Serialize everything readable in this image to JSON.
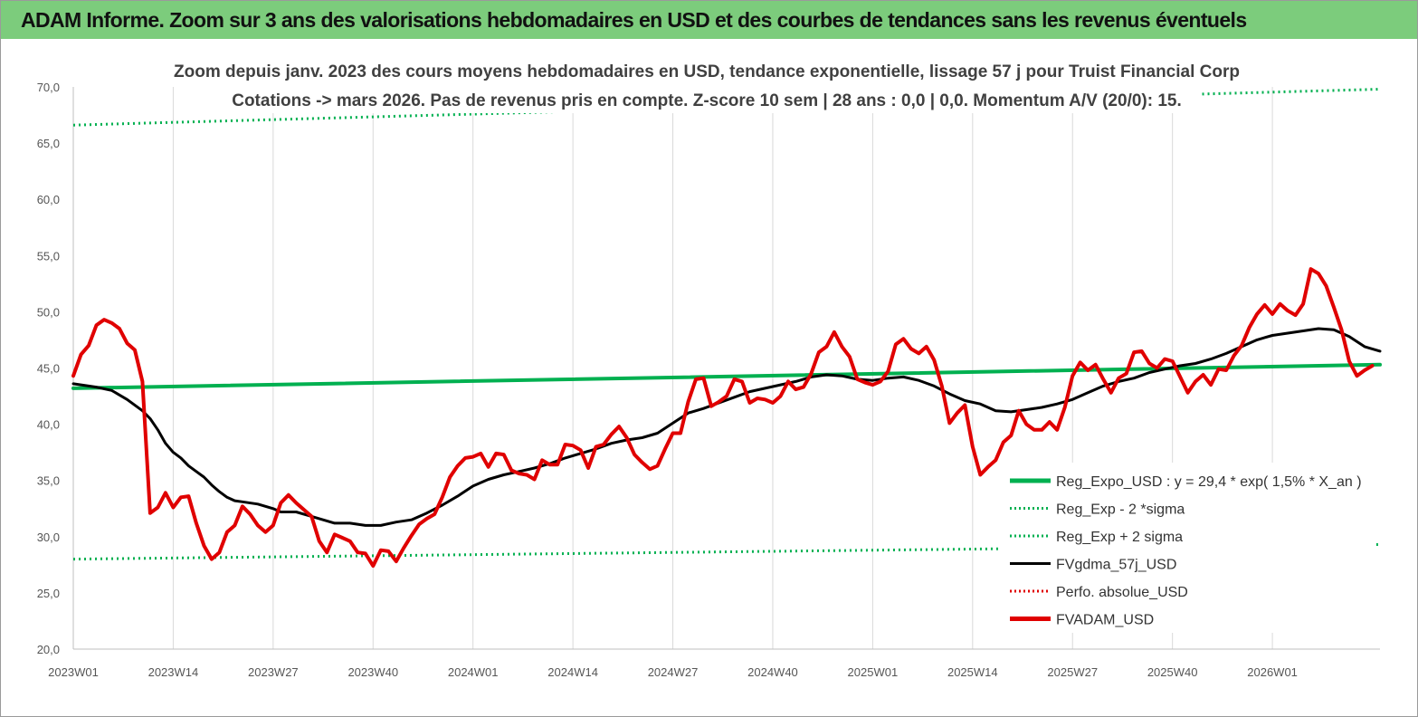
{
  "banner": {
    "title": "ADAM Informe. Zoom sur 3 ans des valorisations hebdomadaires en USD et des courbes de tendances sans les revenus éventuels",
    "color": "#7ccc7c"
  },
  "chart_data": {
    "type": "line",
    "title": "Zoom depuis janv. 2023 des cours moyens hebdomadaires en USD, tendance exponentielle, lissage 57 j pour Truist Financial Corp",
    "subtitle": "Cotations -> mars 2026. Pas de revenus pris en compte. Z-score 10 sem | 28 ans : 0,0 | 0,0. Momentum A/V (20/0): 15.",
    "xlabel": "",
    "ylabel": "",
    "ylim": [
      20,
      70
    ],
    "y_ticks": [
      "20,0",
      "25,0",
      "30,0",
      "35,0",
      "40,0",
      "45,0",
      "50,0",
      "55,0",
      "60,0",
      "65,0",
      "70,0"
    ],
    "x_ticks": [
      "2023W01",
      "2023W14",
      "2023W27",
      "2023W40",
      "2024W01",
      "2024W14",
      "2024W27",
      "2024W40",
      "2025W01",
      "2025W14",
      "2025W27",
      "2025W40",
      "2026W01"
    ],
    "x_tick_weeks": [
      0,
      13,
      26,
      39,
      52,
      65,
      78,
      91,
      104,
      117,
      130,
      143,
      156
    ],
    "week_range": [
      0,
      170
    ],
    "grid": "vertical",
    "legend_position": "right",
    "series": [
      {
        "name": "Reg_Expo_USD : y = 29,4 * exp( 1,5% *  X_an )",
        "color": "#00b050",
        "style": "solid-thick",
        "points": [
          [
            0,
            43.2
          ],
          [
            170,
            45.3
          ]
        ]
      },
      {
        "name": "Reg_Exp - 2 *sigma",
        "color": "#00b050",
        "style": "dotted",
        "points": [
          [
            0,
            28.0
          ],
          [
            170,
            29.3
          ]
        ]
      },
      {
        "name": "Reg_Exp + 2 sigma",
        "color": "#00b050",
        "style": "dotted",
        "points": [
          [
            0,
            66.6
          ],
          [
            170,
            69.8
          ]
        ]
      },
      {
        "name": "FVgdma_57j_USD",
        "color": "#000000",
        "style": "solid",
        "points": [
          [
            0,
            43.6
          ],
          [
            3,
            43.3
          ],
          [
            5,
            43.0
          ],
          [
            7,
            42.2
          ],
          [
            9,
            41.2
          ],
          [
            10,
            40.5
          ],
          [
            11,
            39.5
          ],
          [
            12,
            38.3
          ],
          [
            13,
            37.5
          ],
          [
            14,
            37.0
          ],
          [
            15,
            36.3
          ],
          [
            16,
            35.8
          ],
          [
            17,
            35.3
          ],
          [
            18,
            34.6
          ],
          [
            19,
            34.0
          ],
          [
            20,
            33.5
          ],
          [
            21,
            33.2
          ],
          [
            22,
            33.1
          ],
          [
            24,
            32.9
          ],
          [
            26,
            32.5
          ],
          [
            27,
            32.2
          ],
          [
            29,
            32.2
          ],
          [
            31,
            31.8
          ],
          [
            33,
            31.4
          ],
          [
            34,
            31.2
          ],
          [
            36,
            31.2
          ],
          [
            38,
            31.0
          ],
          [
            40,
            31.0
          ],
          [
            42,
            31.3
          ],
          [
            44,
            31.5
          ],
          [
            46,
            32.1
          ],
          [
            48,
            32.8
          ],
          [
            50,
            33.6
          ],
          [
            52,
            34.5
          ],
          [
            54,
            35.1
          ],
          [
            56,
            35.5
          ],
          [
            58,
            35.8
          ],
          [
            60,
            36.1
          ],
          [
            62,
            36.5
          ],
          [
            64,
            37.0
          ],
          [
            66,
            37.4
          ],
          [
            68,
            37.8
          ],
          [
            70,
            38.3
          ],
          [
            72,
            38.6
          ],
          [
            74,
            38.8
          ],
          [
            76,
            39.2
          ],
          [
            78,
            40.1
          ],
          [
            80,
            41.0
          ],
          [
            82,
            41.4
          ],
          [
            84,
            41.9
          ],
          [
            86,
            42.4
          ],
          [
            88,
            42.9
          ],
          [
            90,
            43.2
          ],
          [
            92,
            43.5
          ],
          [
            94,
            43.8
          ],
          [
            96,
            44.2
          ],
          [
            98,
            44.4
          ],
          [
            100,
            44.3
          ],
          [
            102,
            44.0
          ],
          [
            104,
            43.9
          ],
          [
            106,
            44.1
          ],
          [
            108,
            44.2
          ],
          [
            110,
            43.9
          ],
          [
            112,
            43.4
          ],
          [
            114,
            42.7
          ],
          [
            116,
            42.1
          ],
          [
            118,
            41.8
          ],
          [
            120,
            41.2
          ],
          [
            122,
            41.1
          ],
          [
            124,
            41.3
          ],
          [
            126,
            41.5
          ],
          [
            128,
            41.8
          ],
          [
            130,
            42.2
          ],
          [
            132,
            42.8
          ],
          [
            134,
            43.4
          ],
          [
            136,
            43.8
          ],
          [
            138,
            44.1
          ],
          [
            140,
            44.6
          ],
          [
            142,
            44.9
          ],
          [
            144,
            45.2
          ],
          [
            146,
            45.4
          ],
          [
            148,
            45.8
          ],
          [
            150,
            46.3
          ],
          [
            152,
            46.9
          ],
          [
            154,
            47.5
          ],
          [
            156,
            47.9
          ],
          [
            158,
            48.1
          ],
          [
            160,
            48.3
          ],
          [
            162,
            48.5
          ],
          [
            164,
            48.4
          ],
          [
            166,
            47.8
          ],
          [
            168,
            46.9
          ],
          [
            170,
            46.5
          ]
        ]
      },
      {
        "name": "Perfo. absolue_USD",
        "color": "#e00000",
        "style": "dotted",
        "points": []
      },
      {
        "name": "FVADAM_USD",
        "color": "#e00000",
        "style": "solid-thick",
        "points": [
          [
            0,
            44.3
          ],
          [
            1,
            46.2
          ],
          [
            2,
            47.0
          ],
          [
            3,
            48.8
          ],
          [
            4,
            49.3
          ],
          [
            5,
            49.0
          ],
          [
            6,
            48.5
          ],
          [
            7,
            47.2
          ],
          [
            8,
            46.6
          ],
          [
            9,
            43.8
          ],
          [
            10,
            32.1
          ],
          [
            11,
            32.6
          ],
          [
            12,
            33.9
          ],
          [
            13,
            32.6
          ],
          [
            14,
            33.5
          ],
          [
            15,
            33.6
          ],
          [
            16,
            31.2
          ],
          [
            17,
            29.2
          ],
          [
            18,
            28.0
          ],
          [
            19,
            28.6
          ],
          [
            20,
            30.4
          ],
          [
            21,
            31.0
          ],
          [
            22,
            32.7
          ],
          [
            23,
            32.0
          ],
          [
            24,
            31.0
          ],
          [
            25,
            30.4
          ],
          [
            26,
            31.0
          ],
          [
            27,
            33.0
          ],
          [
            28,
            33.7
          ],
          [
            29,
            33.0
          ],
          [
            30,
            32.4
          ],
          [
            31,
            31.8
          ],
          [
            32,
            29.6
          ],
          [
            33,
            28.6
          ],
          [
            34,
            30.2
          ],
          [
            35,
            29.9
          ],
          [
            36,
            29.6
          ],
          [
            37,
            28.6
          ],
          [
            38,
            28.5
          ],
          [
            39,
            27.4
          ],
          [
            40,
            28.8
          ],
          [
            41,
            28.7
          ],
          [
            42,
            27.8
          ],
          [
            43,
            29.0
          ],
          [
            44,
            30.1
          ],
          [
            45,
            31.1
          ],
          [
            46,
            31.6
          ],
          [
            47,
            32.0
          ],
          [
            48,
            33.5
          ],
          [
            49,
            35.3
          ],
          [
            50,
            36.3
          ],
          [
            51,
            37.0
          ],
          [
            52,
            37.1
          ],
          [
            53,
            37.4
          ],
          [
            54,
            36.2
          ],
          [
            55,
            37.4
          ],
          [
            56,
            37.3
          ],
          [
            57,
            35.9
          ],
          [
            58,
            35.6
          ],
          [
            59,
            35.5
          ],
          [
            60,
            35.1
          ],
          [
            61,
            36.8
          ],
          [
            62,
            36.4
          ],
          [
            63,
            36.4
          ],
          [
            64,
            38.2
          ],
          [
            65,
            38.1
          ],
          [
            66,
            37.7
          ],
          [
            67,
            36.1
          ],
          [
            68,
            38.0
          ],
          [
            69,
            38.2
          ],
          [
            70,
            39.1
          ],
          [
            71,
            39.8
          ],
          [
            72,
            38.8
          ],
          [
            73,
            37.3
          ],
          [
            74,
            36.6
          ],
          [
            75,
            36.0
          ],
          [
            76,
            36.3
          ],
          [
            77,
            37.8
          ],
          [
            78,
            39.2
          ],
          [
            79,
            39.2
          ],
          [
            80,
            42.0
          ],
          [
            81,
            44.0
          ],
          [
            82,
            44.1
          ],
          [
            83,
            41.6
          ],
          [
            84,
            42.0
          ],
          [
            85,
            42.5
          ],
          [
            86,
            44.0
          ],
          [
            87,
            43.8
          ],
          [
            88,
            41.9
          ],
          [
            89,
            42.3
          ],
          [
            90,
            42.2
          ],
          [
            91,
            41.9
          ],
          [
            92,
            42.5
          ],
          [
            93,
            43.8
          ],
          [
            94,
            43.1
          ],
          [
            95,
            43.3
          ],
          [
            96,
            44.5
          ],
          [
            97,
            46.4
          ],
          [
            98,
            46.9
          ],
          [
            99,
            48.2
          ],
          [
            100,
            46.9
          ],
          [
            101,
            46.0
          ],
          [
            102,
            44.0
          ],
          [
            103,
            43.7
          ],
          [
            104,
            43.5
          ],
          [
            105,
            43.8
          ],
          [
            106,
            44.7
          ],
          [
            107,
            47.1
          ],
          [
            108,
            47.6
          ],
          [
            109,
            46.7
          ],
          [
            110,
            46.3
          ],
          [
            111,
            46.9
          ],
          [
            112,
            45.7
          ],
          [
            113,
            43.4
          ],
          [
            114,
            40.1
          ],
          [
            115,
            41.0
          ],
          [
            116,
            41.7
          ],
          [
            117,
            38.0
          ],
          [
            118,
            35.5
          ],
          [
            119,
            36.2
          ],
          [
            120,
            36.8
          ],
          [
            121,
            38.4
          ],
          [
            122,
            39.0
          ],
          [
            123,
            41.2
          ],
          [
            124,
            40.0
          ],
          [
            125,
            39.5
          ],
          [
            126,
            39.5
          ],
          [
            127,
            40.2
          ],
          [
            128,
            39.5
          ],
          [
            129,
            41.5
          ],
          [
            130,
            44.3
          ],
          [
            131,
            45.5
          ],
          [
            132,
            44.8
          ],
          [
            133,
            45.3
          ],
          [
            134,
            44.0
          ],
          [
            135,
            42.8
          ],
          [
            136,
            44.1
          ],
          [
            137,
            44.5
          ],
          [
            138,
            46.4
          ],
          [
            139,
            46.5
          ],
          [
            140,
            45.4
          ],
          [
            141,
            45.0
          ],
          [
            142,
            45.8
          ],
          [
            143,
            45.6
          ],
          [
            144,
            44.2
          ],
          [
            145,
            42.8
          ],
          [
            146,
            43.8
          ],
          [
            147,
            44.4
          ],
          [
            148,
            43.5
          ],
          [
            149,
            44.9
          ],
          [
            150,
            44.8
          ],
          [
            151,
            46.1
          ],
          [
            152,
            47.0
          ],
          [
            153,
            48.6
          ],
          [
            154,
            49.8
          ],
          [
            155,
            50.6
          ],
          [
            156,
            49.8
          ],
          [
            157,
            50.7
          ],
          [
            158,
            50.1
          ],
          [
            159,
            49.7
          ],
          [
            160,
            50.7
          ],
          [
            161,
            53.8
          ],
          [
            162,
            53.4
          ],
          [
            163,
            52.3
          ],
          [
            164,
            50.4
          ],
          [
            165,
            48.4
          ],
          [
            166,
            45.6
          ],
          [
            167,
            44.3
          ],
          [
            168,
            44.8
          ],
          [
            169,
            45.2
          ]
        ]
      }
    ]
  }
}
